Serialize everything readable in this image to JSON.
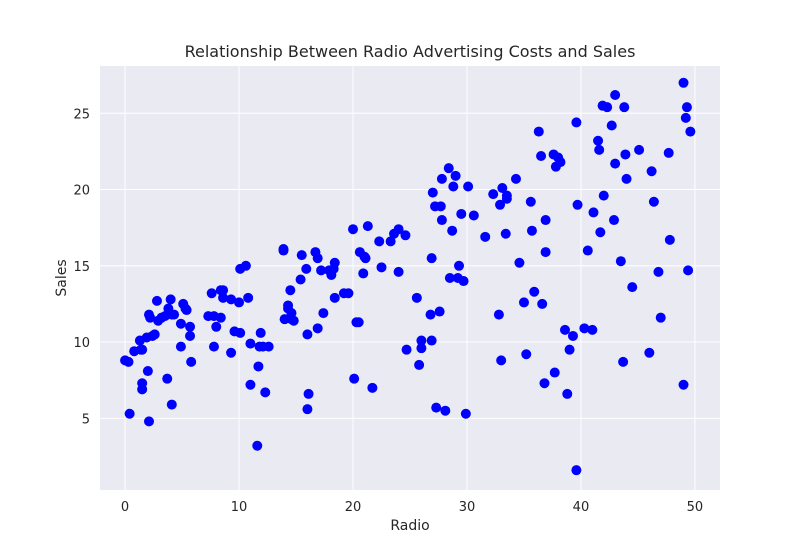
{
  "chart_data": {
    "type": "scatter",
    "title": "Relationship Between Radio Advertising Costs and Sales",
    "xlabel": "Radio",
    "ylabel": "Sales",
    "xlim": [
      -2.2,
      52.2
    ],
    "ylim": [
      0.3,
      28.1
    ],
    "xticks": [
      0,
      10,
      20,
      30,
      40,
      50
    ],
    "yticks": [
      5,
      10,
      15,
      20,
      25
    ],
    "grid": true,
    "style": {
      "background": "#eaeaf2",
      "grid_color": "#ffffff",
      "point_color": "#0000ff"
    },
    "series": [
      {
        "points": [
          [
            0.0,
            8.8
          ],
          [
            0.3,
            8.7
          ],
          [
            0.4,
            5.3
          ],
          [
            0.8,
            9.4
          ],
          [
            1.3,
            10.1
          ],
          [
            1.4,
            9.5
          ],
          [
            1.5,
            7.3
          ],
          [
            1.5,
            6.9
          ],
          [
            1.5,
            9.5
          ],
          [
            1.9,
            10.3
          ],
          [
            2.0,
            8.1
          ],
          [
            2.1,
            4.8
          ],
          [
            2.1,
            11.8
          ],
          [
            2.2,
            11.6
          ],
          [
            2.4,
            10.4
          ],
          [
            2.6,
            10.5
          ],
          [
            2.8,
            12.7
          ],
          [
            2.9,
            11.4
          ],
          [
            3.2,
            11.6
          ],
          [
            3.5,
            11.7
          ],
          [
            3.7,
            7.6
          ],
          [
            3.8,
            12.2
          ],
          [
            4.0,
            12.8
          ],
          [
            4.1,
            5.9
          ],
          [
            4.1,
            11.8
          ],
          [
            4.3,
            11.8
          ],
          [
            4.9,
            9.7
          ],
          [
            4.9,
            11.2
          ],
          [
            5.1,
            12.5
          ],
          [
            5.3,
            12.2
          ],
          [
            5.4,
            12.1
          ],
          [
            5.7,
            10.4
          ],
          [
            5.7,
            11.0
          ],
          [
            5.8,
            8.7
          ],
          [
            7.3,
            11.7
          ],
          [
            7.6,
            13.2
          ],
          [
            7.8,
            9.7
          ],
          [
            7.8,
            11.7
          ],
          [
            8.0,
            11.0
          ],
          [
            8.4,
            13.4
          ],
          [
            8.4,
            11.6
          ],
          [
            8.6,
            12.9
          ],
          [
            8.6,
            13.4
          ],
          [
            9.3,
            12.8
          ],
          [
            9.3,
            9.3
          ],
          [
            9.6,
            10.7
          ],
          [
            10.1,
            14.8
          ],
          [
            10.1,
            10.6
          ],
          [
            10.0,
            12.6
          ],
          [
            10.6,
            15.0
          ],
          [
            10.8,
            12.9
          ],
          [
            11.0,
            9.9
          ],
          [
            11.0,
            7.2
          ],
          [
            11.6,
            3.2
          ],
          [
            11.7,
            8.4
          ],
          [
            11.8,
            9.7
          ],
          [
            11.9,
            10.6
          ],
          [
            12.1,
            9.7
          ],
          [
            12.3,
            6.7
          ],
          [
            12.6,
            9.7
          ],
          [
            13.9,
            16.0
          ],
          [
            13.9,
            16.1
          ],
          [
            14.0,
            11.5
          ],
          [
            14.3,
            12.4
          ],
          [
            14.3,
            12.2
          ],
          [
            14.5,
            13.4
          ],
          [
            14.6,
            11.9
          ],
          [
            14.6,
            11.5
          ],
          [
            14.8,
            11.4
          ],
          [
            15.4,
            14.1
          ],
          [
            15.5,
            15.7
          ],
          [
            15.9,
            14.8
          ],
          [
            16.0,
            5.6
          ],
          [
            16.0,
            10.5
          ],
          [
            16.1,
            6.6
          ],
          [
            16.7,
            15.9
          ],
          [
            16.9,
            15.5
          ],
          [
            16.9,
            10.9
          ],
          [
            17.2,
            14.7
          ],
          [
            17.4,
            11.9
          ],
          [
            17.9,
            14.7
          ],
          [
            18.1,
            14.4
          ],
          [
            18.3,
            14.8
          ],
          [
            18.4,
            15.2
          ],
          [
            18.4,
            12.9
          ],
          [
            19.2,
            13.2
          ],
          [
            19.6,
            13.2
          ],
          [
            20.0,
            17.4
          ],
          [
            20.1,
            7.6
          ],
          [
            20.3,
            11.3
          ],
          [
            20.5,
            11.3
          ],
          [
            20.6,
            15.9
          ],
          [
            20.9,
            14.5
          ],
          [
            21.0,
            15.6
          ],
          [
            21.1,
            15.5
          ],
          [
            21.3,
            17.6
          ],
          [
            21.7,
            7.0
          ],
          [
            22.3,
            16.6
          ],
          [
            22.5,
            14.9
          ],
          [
            23.3,
            16.6
          ],
          [
            23.6,
            17.1
          ],
          [
            24.0,
            14.6
          ],
          [
            24.0,
            17.4
          ],
          [
            24.6,
            17.0
          ],
          [
            24.7,
            9.5
          ],
          [
            25.6,
            12.9
          ],
          [
            25.8,
            8.5
          ],
          [
            26.0,
            9.6
          ],
          [
            26.0,
            10.1
          ],
          [
            26.8,
            11.8
          ],
          [
            26.9,
            15.5
          ],
          [
            26.9,
            10.1
          ],
          [
            27.0,
            19.8
          ],
          [
            27.2,
            18.9
          ],
          [
            27.3,
            5.7
          ],
          [
            27.6,
            12.0
          ],
          [
            27.7,
            18.9
          ],
          [
            27.8,
            18.0
          ],
          [
            27.8,
            20.7
          ],
          [
            28.1,
            5.5
          ],
          [
            28.4,
            21.4
          ],
          [
            28.5,
            14.2
          ],
          [
            28.7,
            17.3
          ],
          [
            28.8,
            20.2
          ],
          [
            29.0,
            20.9
          ],
          [
            29.2,
            14.2
          ],
          [
            29.3,
            15.0
          ],
          [
            29.5,
            18.4
          ],
          [
            29.7,
            14.0
          ],
          [
            29.9,
            5.3
          ],
          [
            30.1,
            20.2
          ],
          [
            30.6,
            18.3
          ],
          [
            31.6,
            16.9
          ],
          [
            32.3,
            19.7
          ],
          [
            32.8,
            11.8
          ],
          [
            32.9,
            19.0
          ],
          [
            33.0,
            8.8
          ],
          [
            33.1,
            20.1
          ],
          [
            33.4,
            17.1
          ],
          [
            33.5,
            19.6
          ],
          [
            33.5,
            19.4
          ],
          [
            34.3,
            20.7
          ],
          [
            34.6,
            15.2
          ],
          [
            35.0,
            12.6
          ],
          [
            35.2,
            9.2
          ],
          [
            35.6,
            19.2
          ],
          [
            35.7,
            17.3
          ],
          [
            35.9,
            13.3
          ],
          [
            36.3,
            23.8
          ],
          [
            36.5,
            22.2
          ],
          [
            36.6,
            12.5
          ],
          [
            36.8,
            7.3
          ],
          [
            36.9,
            15.9
          ],
          [
            36.9,
            18.0
          ],
          [
            37.6,
            22.3
          ],
          [
            37.7,
            8.0
          ],
          [
            37.8,
            21.5
          ],
          [
            38.0,
            22.1
          ],
          [
            38.2,
            21.8
          ],
          [
            38.6,
            10.8
          ],
          [
            38.8,
            6.6
          ],
          [
            39.0,
            9.5
          ],
          [
            39.3,
            10.4
          ],
          [
            39.6,
            1.6
          ],
          [
            39.6,
            24.4
          ],
          [
            39.7,
            19.0
          ],
          [
            40.3,
            10.9
          ],
          [
            40.6,
            16.0
          ],
          [
            41.0,
            10.8
          ],
          [
            41.1,
            18.5
          ],
          [
            41.5,
            23.2
          ],
          [
            41.6,
            22.6
          ],
          [
            41.7,
            17.2
          ],
          [
            41.9,
            25.5
          ],
          [
            42.0,
            19.6
          ],
          [
            42.3,
            25.4
          ],
          [
            42.7,
            24.2
          ],
          [
            42.9,
            18.0
          ],
          [
            43.0,
            26.2
          ],
          [
            43.0,
            21.7
          ],
          [
            43.5,
            15.3
          ],
          [
            43.7,
            8.7
          ],
          [
            43.8,
            25.4
          ],
          [
            43.9,
            22.3
          ],
          [
            44.0,
            20.7
          ],
          [
            44.5,
            13.6
          ],
          [
            45.1,
            22.6
          ],
          [
            46.0,
            9.3
          ],
          [
            46.2,
            21.2
          ],
          [
            46.4,
            19.2
          ],
          [
            46.8,
            14.6
          ],
          [
            47.0,
            11.6
          ],
          [
            47.7,
            22.4
          ],
          [
            47.8,
            16.7
          ],
          [
            49.0,
            27.0
          ],
          [
            49.0,
            7.2
          ],
          [
            49.3,
            25.4
          ],
          [
            49.2,
            24.7
          ],
          [
            49.4,
            14.7
          ],
          [
            49.6,
            23.8
          ]
        ]
      }
    ]
  }
}
